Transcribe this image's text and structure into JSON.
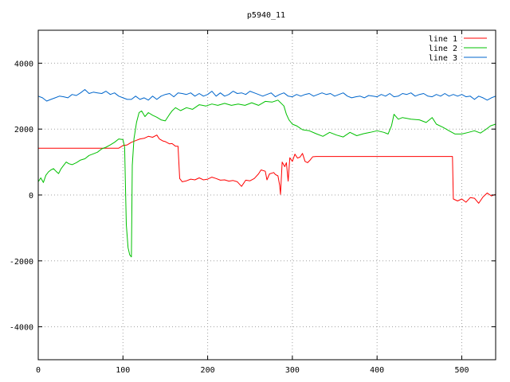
{
  "chart_data": {
    "type": "line",
    "title": "p5940_11",
    "xlabel": "",
    "ylabel": "",
    "xlim": [
      0,
      540
    ],
    "ylim": [
      -5000,
      5000
    ],
    "xticks": [
      0,
      100,
      200,
      300,
      400,
      500
    ],
    "yticks": [
      -4000,
      -2000,
      0,
      2000,
      4000
    ],
    "grid": true,
    "legend_position": "top-right",
    "series": [
      {
        "name": "line 1",
        "color": "#ff0000",
        "points": [
          [
            0,
            1420
          ],
          [
            95,
            1420
          ],
          [
            100,
            1500
          ],
          [
            105,
            1520
          ],
          [
            110,
            1600
          ],
          [
            115,
            1650
          ],
          [
            120,
            1700
          ],
          [
            125,
            1720
          ],
          [
            130,
            1780
          ],
          [
            135,
            1750
          ],
          [
            140,
            1820
          ],
          [
            143,
            1700
          ],
          [
            147,
            1640
          ],
          [
            150,
            1620
          ],
          [
            155,
            1550
          ],
          [
            158,
            1560
          ],
          [
            162,
            1480
          ],
          [
            165,
            1480
          ],
          [
            167,
            500
          ],
          [
            170,
            400
          ],
          [
            175,
            430
          ],
          [
            180,
            480
          ],
          [
            185,
            460
          ],
          [
            190,
            520
          ],
          [
            195,
            460
          ],
          [
            200,
            480
          ],
          [
            205,
            540
          ],
          [
            210,
            500
          ],
          [
            215,
            450
          ],
          [
            220,
            460
          ],
          [
            225,
            420
          ],
          [
            230,
            440
          ],
          [
            235,
            400
          ],
          [
            240,
            260
          ],
          [
            245,
            450
          ],
          [
            250,
            430
          ],
          [
            255,
            500
          ],
          [
            260,
            640
          ],
          [
            263,
            760
          ],
          [
            268,
            720
          ],
          [
            270,
            460
          ],
          [
            273,
            640
          ],
          [
            278,
            680
          ],
          [
            280,
            620
          ],
          [
            283,
            580
          ],
          [
            285,
            300
          ],
          [
            286,
            20
          ],
          [
            288,
            1000
          ],
          [
            291,
            860
          ],
          [
            293,
            980
          ],
          [
            295,
            420
          ],
          [
            297,
            1130
          ],
          [
            300,
            1020
          ],
          [
            303,
            1240
          ],
          [
            306,
            1120
          ],
          [
            309,
            1150
          ],
          [
            312,
            1260
          ],
          [
            315,
            1020
          ],
          [
            318,
            980
          ],
          [
            321,
            1060
          ],
          [
            324,
            1160
          ],
          [
            328,
            1170
          ],
          [
            350,
            1170
          ],
          [
            400,
            1170
          ],
          [
            450,
            1170
          ],
          [
            489,
            1170
          ],
          [
            490,
            -120
          ],
          [
            495,
            -180
          ],
          [
            500,
            -120
          ],
          [
            505,
            -220
          ],
          [
            510,
            -80
          ],
          [
            515,
            -100
          ],
          [
            520,
            -250
          ],
          [
            525,
            -60
          ],
          [
            530,
            60
          ],
          [
            535,
            -30
          ],
          [
            540,
            20
          ]
        ]
      },
      {
        "name": "line 2",
        "color": "#00c000",
        "points": [
          [
            0,
            400
          ],
          [
            3,
            520
          ],
          [
            6,
            380
          ],
          [
            9,
            600
          ],
          [
            12,
            700
          ],
          [
            15,
            760
          ],
          [
            18,
            800
          ],
          [
            21,
            720
          ],
          [
            24,
            650
          ],
          [
            27,
            800
          ],
          [
            30,
            900
          ],
          [
            33,
            1000
          ],
          [
            36,
            950
          ],
          [
            40,
            920
          ],
          [
            45,
            980
          ],
          [
            50,
            1060
          ],
          [
            55,
            1100
          ],
          [
            60,
            1200
          ],
          [
            65,
            1250
          ],
          [
            70,
            1300
          ],
          [
            75,
            1400
          ],
          [
            80,
            1450
          ],
          [
            85,
            1520
          ],
          [
            90,
            1600
          ],
          [
            95,
            1700
          ],
          [
            100,
            1680
          ],
          [
            102,
            1450
          ],
          [
            103,
            200
          ],
          [
            104,
            -900
          ],
          [
            106,
            -1600
          ],
          [
            108,
            -1820
          ],
          [
            110,
            -1880
          ],
          [
            111,
            900
          ],
          [
            113,
            1700
          ],
          [
            116,
            2200
          ],
          [
            119,
            2500
          ],
          [
            122,
            2550
          ],
          [
            126,
            2380
          ],
          [
            130,
            2500
          ],
          [
            135,
            2420
          ],
          [
            140,
            2360
          ],
          [
            145,
            2280
          ],
          [
            150,
            2250
          ],
          [
            155,
            2450
          ],
          [
            158,
            2550
          ],
          [
            162,
            2650
          ],
          [
            168,
            2560
          ],
          [
            175,
            2650
          ],
          [
            182,
            2600
          ],
          [
            190,
            2740
          ],
          [
            198,
            2700
          ],
          [
            205,
            2760
          ],
          [
            212,
            2720
          ],
          [
            220,
            2780
          ],
          [
            228,
            2720
          ],
          [
            236,
            2760
          ],
          [
            244,
            2720
          ],
          [
            252,
            2800
          ],
          [
            260,
            2720
          ],
          [
            268,
            2840
          ],
          [
            276,
            2820
          ],
          [
            283,
            2880
          ],
          [
            290,
            2700
          ],
          [
            293,
            2450
          ],
          [
            296,
            2280
          ],
          [
            300,
            2150
          ],
          [
            305,
            2100
          ],
          [
            312,
            1980
          ],
          [
            320,
            1950
          ],
          [
            328,
            1860
          ],
          [
            336,
            1780
          ],
          [
            344,
            1900
          ],
          [
            352,
            1820
          ],
          [
            360,
            1760
          ],
          [
            368,
            1900
          ],
          [
            376,
            1800
          ],
          [
            384,
            1860
          ],
          [
            392,
            1900
          ],
          [
            400,
            1950
          ],
          [
            408,
            1900
          ],
          [
            413,
            1850
          ],
          [
            417,
            2100
          ],
          [
            420,
            2450
          ],
          [
            425,
            2300
          ],
          [
            430,
            2350
          ],
          [
            440,
            2300
          ],
          [
            450,
            2280
          ],
          [
            458,
            2200
          ],
          [
            465,
            2350
          ],
          [
            470,
            2150
          ],
          [
            478,
            2050
          ],
          [
            485,
            1950
          ],
          [
            492,
            1850
          ],
          [
            500,
            1850
          ],
          [
            508,
            1900
          ],
          [
            515,
            1950
          ],
          [
            522,
            1880
          ],
          [
            528,
            1980
          ],
          [
            534,
            2100
          ],
          [
            540,
            2150
          ]
        ]
      },
      {
        "name": "line 3",
        "color": "#0066cc",
        "points": [
          [
            0,
            3000
          ],
          [
            5,
            2950
          ],
          [
            10,
            2850
          ],
          [
            15,
            2900
          ],
          [
            20,
            2950
          ],
          [
            25,
            3000
          ],
          [
            30,
            2980
          ],
          [
            35,
            2950
          ],
          [
            40,
            3050
          ],
          [
            45,
            3020
          ],
          [
            50,
            3100
          ],
          [
            55,
            3200
          ],
          [
            60,
            3080
          ],
          [
            65,
            3120
          ],
          [
            70,
            3100
          ],
          [
            75,
            3080
          ],
          [
            80,
            3150
          ],
          [
            85,
            3050
          ],
          [
            90,
            3100
          ],
          [
            95,
            3000
          ],
          [
            100,
            2950
          ],
          [
            105,
            2900
          ],
          [
            110,
            2900
          ],
          [
            115,
            3000
          ],
          [
            120,
            2900
          ],
          [
            125,
            2950
          ],
          [
            130,
            2880
          ],
          [
            135,
            3000
          ],
          [
            140,
            2900
          ],
          [
            145,
            3000
          ],
          [
            150,
            3050
          ],
          [
            155,
            3080
          ],
          [
            160,
            2980
          ],
          [
            165,
            3100
          ],
          [
            170,
            3080
          ],
          [
            175,
            3050
          ],
          [
            180,
            3100
          ],
          [
            185,
            3000
          ],
          [
            190,
            3080
          ],
          [
            195,
            3000
          ],
          [
            200,
            3050
          ],
          [
            205,
            3150
          ],
          [
            210,
            3000
          ],
          [
            215,
            3100
          ],
          [
            220,
            3000
          ],
          [
            225,
            3050
          ],
          [
            230,
            3150
          ],
          [
            235,
            3080
          ],
          [
            240,
            3100
          ],
          [
            245,
            3050
          ],
          [
            250,
            3150
          ],
          [
            255,
            3100
          ],
          [
            260,
            3050
          ],
          [
            265,
            3000
          ],
          [
            270,
            3050
          ],
          [
            275,
            3100
          ],
          [
            280,
            2980
          ],
          [
            285,
            3050
          ],
          [
            290,
            3100
          ],
          [
            295,
            3000
          ],
          [
            300,
            2980
          ],
          [
            305,
            3050
          ],
          [
            310,
            3000
          ],
          [
            315,
            3050
          ],
          [
            320,
            3080
          ],
          [
            325,
            3000
          ],
          [
            330,
            3050
          ],
          [
            335,
            3100
          ],
          [
            340,
            3050
          ],
          [
            345,
            3080
          ],
          [
            350,
            3000
          ],
          [
            355,
            3050
          ],
          [
            360,
            3100
          ],
          [
            365,
            3000
          ],
          [
            370,
            2950
          ],
          [
            375,
            2980
          ],
          [
            380,
            3000
          ],
          [
            385,
            2950
          ],
          [
            390,
            3020
          ],
          [
            395,
            3000
          ],
          [
            400,
            2980
          ],
          [
            405,
            3050
          ],
          [
            410,
            3000
          ],
          [
            415,
            3080
          ],
          [
            420,
            2980
          ],
          [
            425,
            3000
          ],
          [
            430,
            3080
          ],
          [
            435,
            3050
          ],
          [
            440,
            3100
          ],
          [
            445,
            3000
          ],
          [
            450,
            3050
          ],
          [
            455,
            3080
          ],
          [
            460,
            3000
          ],
          [
            465,
            2980
          ],
          [
            470,
            3050
          ],
          [
            475,
            3000
          ],
          [
            480,
            3080
          ],
          [
            485,
            3000
          ],
          [
            490,
            3050
          ],
          [
            495,
            3000
          ],
          [
            500,
            3050
          ],
          [
            505,
            2980
          ],
          [
            510,
            3000
          ],
          [
            515,
            2900
          ],
          [
            520,
            3000
          ],
          [
            525,
            2950
          ],
          [
            530,
            2880
          ],
          [
            535,
            2950
          ],
          [
            540,
            3000
          ]
        ]
      }
    ]
  }
}
